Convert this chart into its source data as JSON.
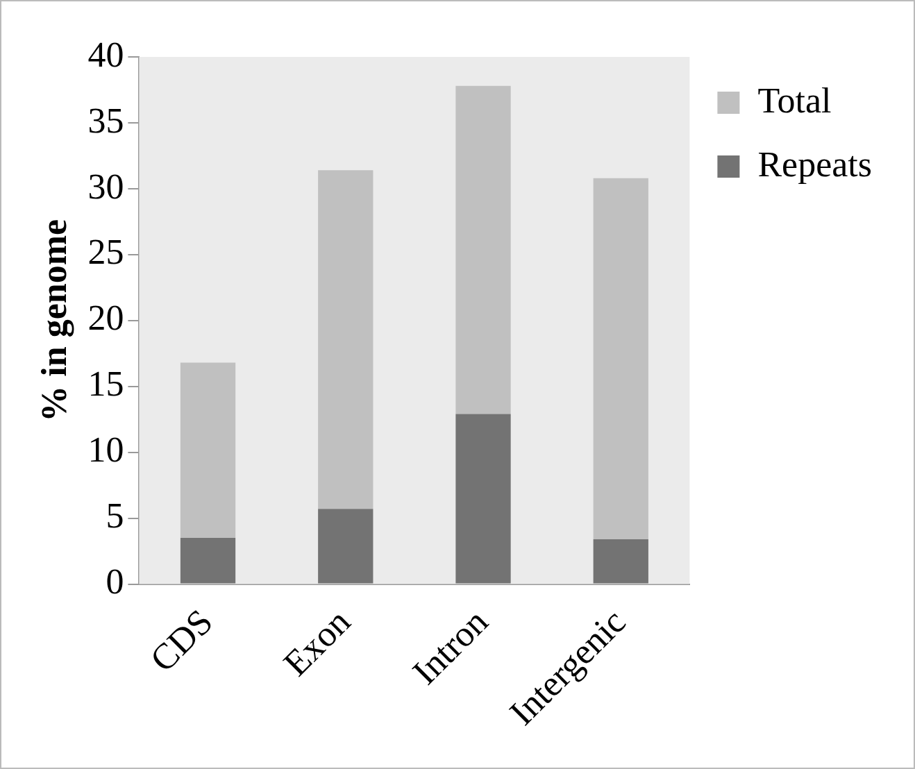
{
  "chart_data": {
    "type": "bar",
    "ylabel": "% in genome",
    "categories": [
      "CDS",
      "Exon",
      "Intron",
      "Intergenic"
    ],
    "stacked": true,
    "series": [
      {
        "name": "Repeats",
        "color": "#737373",
        "values": [
          3.5,
          5.7,
          12.9,
          3.4
        ]
      },
      {
        "name": "Total",
        "color": "#c0c0c0",
        "values": [
          13.3,
          25.7,
          24.9,
          27.4
        ]
      }
    ],
    "ylim": [
      0,
      40
    ],
    "yticks": [
      0,
      5,
      10,
      15,
      20,
      25,
      30,
      35,
      40
    ],
    "grid": false,
    "legend": "right"
  }
}
